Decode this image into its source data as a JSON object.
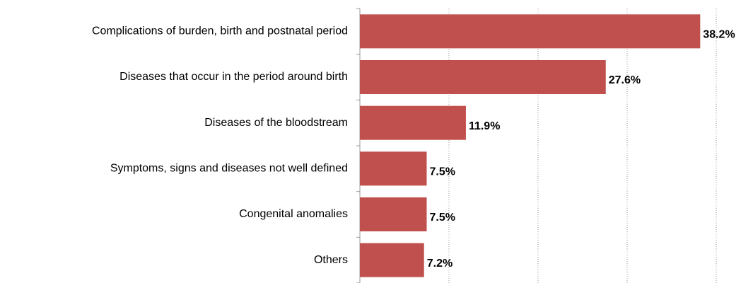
{
  "chart_data": {
    "type": "hbar",
    "categories": [
      "Complications of burden, birth and postnatal period",
      "Diseases that occur in the period around birth",
      "Diseases of the bloodstream",
      "Symptoms, signs and diseases not well defined",
      "Congenital anomalies",
      "Others"
    ],
    "values": [
      38.2,
      27.6,
      11.9,
      7.5,
      7.5,
      7.2
    ],
    "value_labels": [
      "38.2%",
      "27.6%",
      "11.9%",
      "7.5%",
      "7.5%",
      "7.2%"
    ],
    "color": "#c0504d",
    "xlim": [
      0,
      40
    ],
    "xticks": [
      0,
      10,
      20,
      30,
      40
    ],
    "grid": true
  }
}
